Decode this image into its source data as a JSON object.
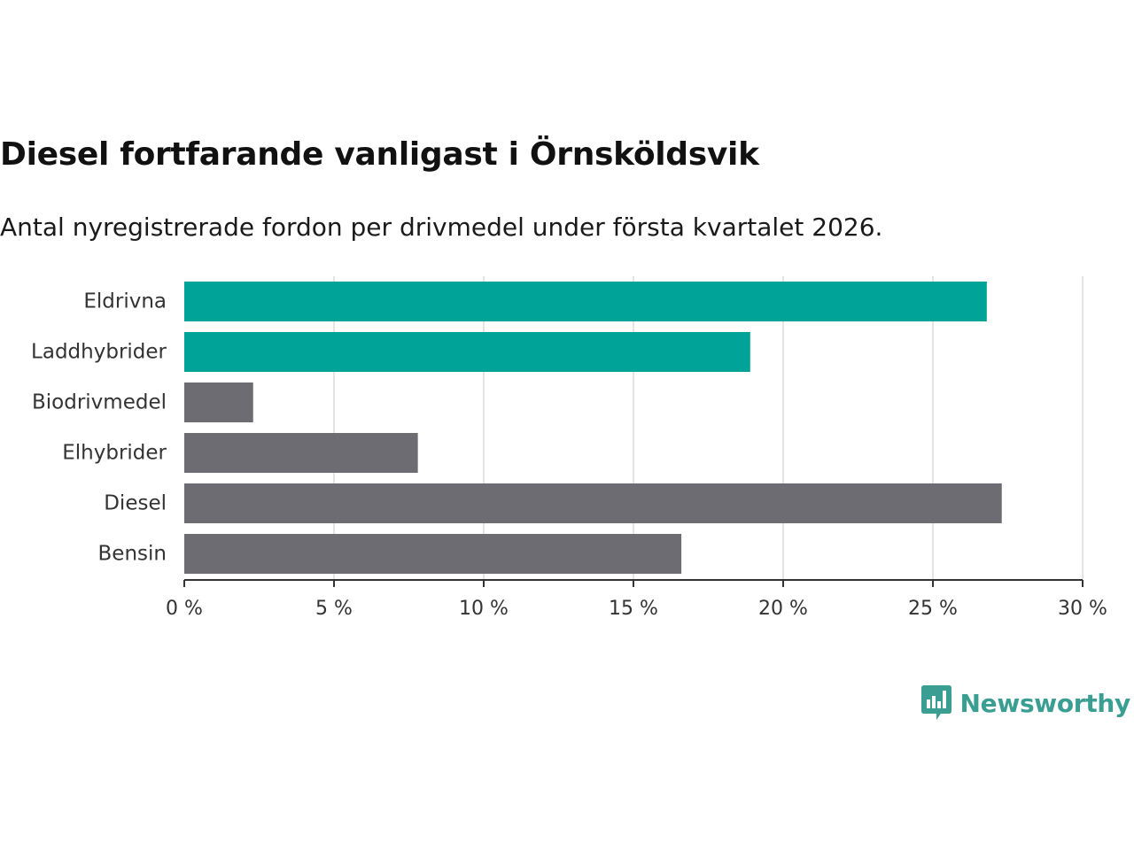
{
  "header": {
    "title": "Diesel fortfarande vanligast i Örnsköldsvik",
    "subtitle": "Antal nyregistrerade fordon per drivmedel under första kvartalet 2026."
  },
  "chart_data": {
    "type": "bar",
    "orientation": "horizontal",
    "title": "Diesel fortfarande vanligast i Örnsköldsvik",
    "subtitle": "Antal nyregistrerade fordon per drivmedel under första kvartalet 2026.",
    "categories": [
      "Eldrivna",
      "Laddhybrider",
      "Biodrivmedel",
      "Elhybrider",
      "Diesel",
      "Bensin"
    ],
    "values": [
      26.8,
      18.9,
      2.3,
      7.8,
      27.3,
      16.6
    ],
    "highlight": [
      true,
      true,
      false,
      false,
      false,
      false
    ],
    "xlim": [
      0,
      30
    ],
    "ticks": [
      0,
      5,
      10,
      15,
      20,
      25,
      30
    ],
    "tick_labels": [
      "0 %",
      "5 %",
      "10 %",
      "15 %",
      "20 %",
      "25 %",
      "30 %"
    ],
    "xlabel": "",
    "ylabel": "",
    "grid": true,
    "colors": {
      "highlight": "#00a398",
      "default": "#6d6c72",
      "grid": "#dcdcdc",
      "axis": "#333333"
    }
  },
  "brand": {
    "name": "Newsworthy",
    "icon": "newsworthy-logo-icon",
    "color": "#3a9e93"
  }
}
